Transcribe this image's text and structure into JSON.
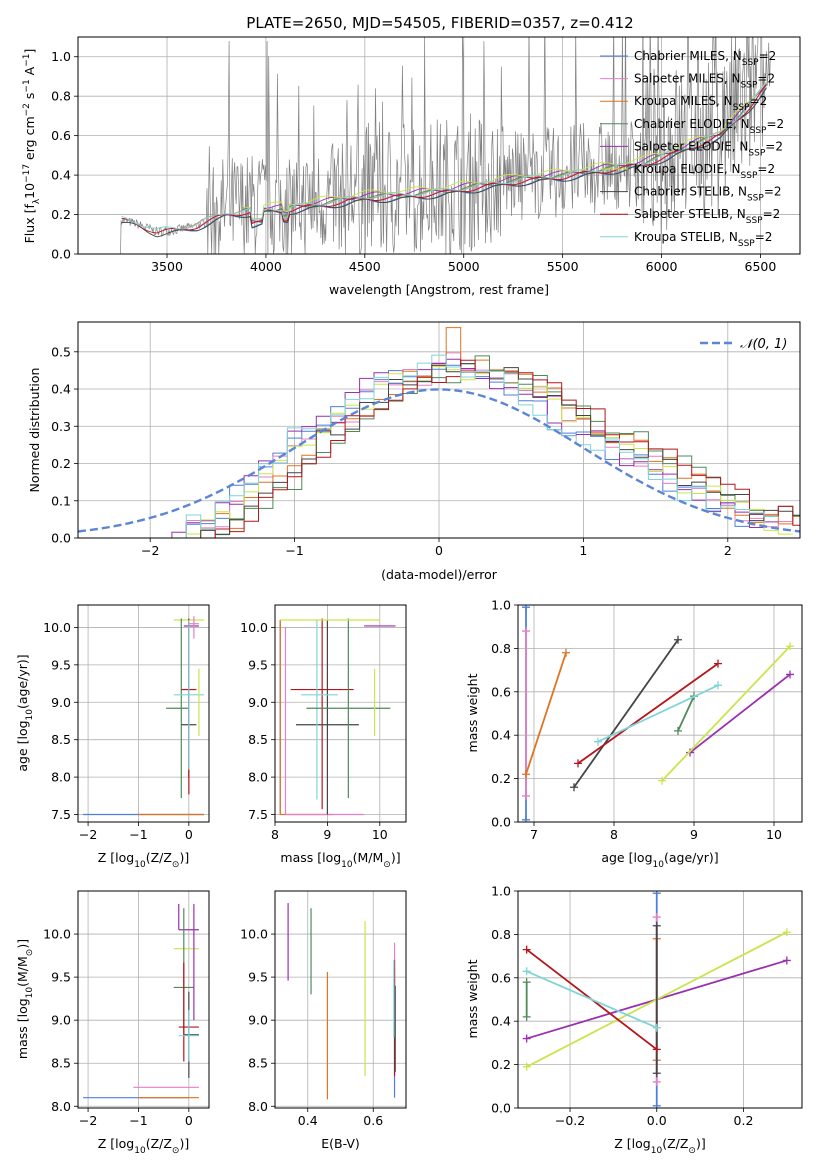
{
  "title": "PLATE=2650, MJD=54505, FIBERID=0357, z=0.412",
  "models": [
    {
      "key": "chabrier_miles",
      "label": "Chabrier MILES, N",
      "sub": "SSP",
      "suffix": "=2",
      "color": "#4f7fdc"
    },
    {
      "key": "salpeter_miles",
      "label": "Salpeter MILES, N",
      "sub": "SSP",
      "suffix": "=2",
      "color": "#e67fc5"
    },
    {
      "key": "kroupa_miles",
      "label": "Kroupa MILES, N",
      "sub": "SSP",
      "suffix": "=2",
      "color": "#e0731f"
    },
    {
      "key": "chabrier_elodie",
      "label": "Chabrier ELODIE, N",
      "sub": "SSP",
      "suffix": "=2",
      "color": "#4f8a5a"
    },
    {
      "key": "salpeter_elodie",
      "label": "Salpeter ELODIE, N",
      "sub": "SSP",
      "suffix": "=2",
      "color": "#9a2fb0"
    },
    {
      "key": "kroupa_elodie",
      "label": "Kroupa ELODIE, N",
      "sub": "SSP",
      "suffix": "=2",
      "color": "#c8e64a"
    },
    {
      "key": "chabrier_stelib",
      "label": "Chabrier STELIB, N",
      "sub": "SSP",
      "suffix": "=2",
      "color": "#444444"
    },
    {
      "key": "salpeter_stelib",
      "label": "Salpeter STELIB, N",
      "sub": "SSP",
      "suffix": "=2",
      "color": "#b5161c"
    },
    {
      "key": "kroupa_stelib",
      "label": "Kroupa STELIB, N",
      "sub": "SSP",
      "suffix": "=2",
      "color": "#7fd4d8"
    }
  ],
  "chart_data": [
    {
      "id": "spectrum",
      "type": "line",
      "title": "PLATE=2650, MJD=54505, FIBERID=0357, z=0.412",
      "xlabel": "wavelength [Angstrom, rest frame]",
      "ylabel_main": "Flux [f",
      "ylabel_sub": "λ",
      "ylabel_mid": "10",
      "ylabel_sup1": "−17",
      "ylabel_mid2": " erg cm",
      "ylabel_sup2": "−2",
      "ylabel_mid3": " s",
      "ylabel_sup3": "−1",
      "ylabel_mid4": " A",
      "ylabel_sup4": "−1",
      "ylabel_end": "]",
      "xlim": [
        3050,
        6700
      ],
      "ylim": [
        0,
        1.1
      ],
      "xticks": [
        3500,
        4000,
        4500,
        5000,
        5500,
        6000,
        6500
      ],
      "yticks": [
        0.0,
        0.2,
        0.4,
        0.6,
        0.8,
        1.0
      ],
      "data_color": "#808080",
      "data_range": [
        3200,
        6550
      ],
      "model_continuum": {
        "x": [
          3270,
          3350,
          3450,
          3550,
          3650,
          3800,
          3900,
          4000,
          4100,
          4300,
          4500,
          4700,
          4900,
          5100,
          5300,
          5500,
          5700,
          5900,
          6100,
          6300,
          6450,
          6530
        ],
        "y": [
          0.17,
          0.15,
          0.11,
          0.12,
          0.14,
          0.2,
          0.21,
          0.22,
          0.22,
          0.25,
          0.28,
          0.29,
          0.31,
          0.34,
          0.37,
          0.39,
          0.42,
          0.45,
          0.52,
          0.6,
          0.75,
          0.85
        ]
      }
    },
    {
      "id": "residuals",
      "type": "step-histogram",
      "xlabel": "(data-model)/error",
      "ylabel": "Normed distribution",
      "legend": "𝒩(0, 1)",
      "xlim": [
        -2.5,
        2.5
      ],
      "ylim": [
        0,
        0.58
      ],
      "xticks": [
        -2,
        -1,
        0,
        1,
        2
      ],
      "yticks": [
        0.0,
        0.1,
        0.2,
        0.3,
        0.4,
        0.5
      ],
      "bin_width": 0.1,
      "bin_start": -2.5,
      "envelope": [
        0.0,
        0.0,
        0.0,
        0.0,
        0.0,
        0.0,
        0.0,
        0.0,
        0.02,
        0.04,
        0.05,
        0.08,
        0.12,
        0.15,
        0.19,
        0.23,
        0.27,
        0.3,
        0.32,
        0.34,
        0.37,
        0.4,
        0.42,
        0.43,
        0.44,
        0.46,
        0.47,
        0.45,
        0.44,
        0.43,
        0.42,
        0.4,
        0.38,
        0.35,
        0.32,
        0.3,
        0.28,
        0.26,
        0.24,
        0.22,
        0.2,
        0.17,
        0.15,
        0.13,
        0.11,
        0.09,
        0.07,
        0.06,
        0.05,
        0.04
      ]
    },
    {
      "id": "age_vs_Z",
      "type": "errorbar",
      "xlabel_main": "Z [log",
      "xlabel_sub": "10",
      "xlabel_end": "(Z/Z",
      "xlabel_sun": "⊙",
      "xlabel_close": ")]",
      "ylabel_main": "age  [log",
      "ylabel_sub": "10",
      "ylabel_end": "(age/yr)]",
      "xlim": [
        -2.2,
        0.4
      ],
      "ylim": [
        7.4,
        10.3
      ],
      "xticks": [
        -2,
        -1,
        0
      ],
      "yticks": [
        7.5,
        8.0,
        8.5,
        9.0,
        9.5,
        10.0
      ],
      "points": [
        {
          "m": 0,
          "x": 0.0,
          "y": 7.5,
          "xerr": [
            2.1,
            0.3
          ],
          "yerr": [
            0.0,
            0.0
          ]
        },
        {
          "m": 2,
          "x": 0.0,
          "y": 7.5,
          "xerr": [
            1.0,
            0.3
          ],
          "yerr": [
            0.0,
            0.0
          ]
        },
        {
          "m": 5,
          "x": 0.0,
          "y": 10.1,
          "xerr": [
            0.3,
            0.3
          ],
          "yerr": [
            0.0,
            0.0
          ]
        },
        {
          "m": 4,
          "x": 0.2,
          "y": 10.02,
          "xerr": [
            0.3,
            0.0
          ],
          "yerr": [
            0.0,
            0.0
          ]
        },
        {
          "m": 3,
          "x": -0.15,
          "y": 8.92,
          "xerr": [
            0.3,
            0.15
          ],
          "yerr": [
            1.2,
            1.2
          ]
        },
        {
          "m": 6,
          "x": 0.0,
          "y": 8.7,
          "xerr": [
            0.15,
            0.15
          ],
          "yerr": [
            0.7,
            1.4
          ]
        },
        {
          "m": 7,
          "x": 0.0,
          "y": 9.17,
          "xerr": [
            0.15,
            0.15
          ],
          "yerr": [
            1.4,
            0.95
          ]
        },
        {
          "m": 8,
          "x": 0.0,
          "y": 9.1,
          "xerr": [
            0.3,
            0.3
          ],
          "yerr": [
            1.0,
            1.0
          ]
        },
        {
          "m": 1,
          "x": 0.1,
          "y": 10.05,
          "xerr": [
            0.1,
            0.1
          ],
          "yerr": [
            0.2,
            0.1
          ]
        },
        {
          "m": 5,
          "x": 0.2,
          "y": 9.0,
          "xerr": [
            0.0,
            0.0
          ],
          "yerr": [
            0.45,
            0.45
          ]
        }
      ]
    },
    {
      "id": "age_vs_mass",
      "type": "errorbar",
      "xlabel_main": "mass [log",
      "xlabel_sub": "10",
      "xlabel_end": "(M/M",
      "xlabel_sun": "⊙",
      "xlabel_close": ")]",
      "xlim": [
        8.0,
        10.5
      ],
      "ylim": [
        7.4,
        10.3
      ],
      "xticks": [
        8,
        9,
        10
      ],
      "yticks": [
        7.5,
        8.0,
        8.5,
        9.0,
        9.5,
        10.0
      ],
      "points": [
        {
          "m": 0,
          "x": 8.1,
          "y": 7.5,
          "xerr": [
            0.0,
            0.0
          ],
          "yerr": [
            0.0,
            2.6
          ]
        },
        {
          "m": 2,
          "x": 8.1,
          "y": 7.5,
          "xerr": [
            0.0,
            1.0
          ],
          "yerr": [
            0.0,
            2.6
          ]
        },
        {
          "m": 1,
          "x": 8.2,
          "y": 7.5,
          "xerr": [
            0.0,
            1.5
          ],
          "yerr": [
            0.0,
            2.5
          ]
        },
        {
          "m": 7,
          "x": 8.9,
          "y": 9.17,
          "xerr": [
            0.6,
            0.6
          ],
          "yerr": [
            1.6,
            0.95
          ]
        },
        {
          "m": 6,
          "x": 9.0,
          "y": 8.7,
          "xerr": [
            0.6,
            0.6
          ],
          "yerr": [
            1.2,
            1.4
          ]
        },
        {
          "m": 8,
          "x": 8.8,
          "y": 9.1,
          "xerr": [
            0.3,
            0.4
          ],
          "yerr": [
            1.4,
            1.0
          ]
        },
        {
          "m": 3,
          "x": 9.4,
          "y": 8.92,
          "xerr": [
            0.8,
            0.8
          ],
          "yerr": [
            1.2,
            1.2
          ]
        },
        {
          "m": 5,
          "x": 9.0,
          "y": 10.1,
          "xerr": [
            0.9,
            1.0
          ],
          "yerr": [
            0.0,
            0.0
          ]
        },
        {
          "m": 4,
          "x": 10.0,
          "y": 10.02,
          "xerr": [
            0.3,
            0.3
          ],
          "yerr": [
            0.0,
            0.0
          ]
        },
        {
          "m": 5,
          "x": 9.9,
          "y": 9.0,
          "xerr": [
            0.0,
            0.0
          ],
          "yerr": [
            0.45,
            0.45
          ]
        }
      ]
    },
    {
      "id": "weight_vs_age",
      "type": "line",
      "xlabel_main": "age  [log",
      "xlabel_sub": "10",
      "xlabel_end": "(age/yr)]",
      "ylabel": "mass weight",
      "xlim": [
        6.8,
        10.35
      ],
      "ylim": [
        0.0,
        1.0
      ],
      "xticks": [
        7,
        8,
        9,
        10
      ],
      "yticks": [
        0.0,
        0.2,
        0.4,
        0.6,
        0.8,
        1.0
      ],
      "series": [
        {
          "m": 0,
          "x": [
            6.9,
            6.9
          ],
          "y": [
            0.01,
            0.99
          ]
        },
        {
          "m": 1,
          "x": [
            6.9,
            6.9
          ],
          "y": [
            0.12,
            0.88
          ]
        },
        {
          "m": 2,
          "x": [
            6.9,
            7.4
          ],
          "y": [
            0.22,
            0.78
          ]
        },
        {
          "m": 3,
          "x": [
            8.8,
            9.0
          ],
          "y": [
            0.42,
            0.58
          ]
        },
        {
          "m": 4,
          "x": [
            8.95,
            10.2
          ],
          "y": [
            0.32,
            0.68
          ]
        },
        {
          "m": 5,
          "x": [
            8.6,
            10.2
          ],
          "y": [
            0.19,
            0.81
          ]
        },
        {
          "m": 6,
          "x": [
            7.5,
            8.8
          ],
          "y": [
            0.16,
            0.84
          ]
        },
        {
          "m": 7,
          "x": [
            7.55,
            9.3
          ],
          "y": [
            0.27,
            0.73
          ]
        },
        {
          "m": 8,
          "x": [
            7.8,
            9.3
          ],
          "y": [
            0.37,
            0.63
          ]
        }
      ]
    },
    {
      "id": "mass_vs_Z",
      "type": "errorbar",
      "xlabel_main": "Z [log",
      "xlabel_sub": "10",
      "xlabel_end": "(Z/Z",
      "xlabel_sun": "⊙",
      "xlabel_close": ")]",
      "ylabel_main": "mass [log",
      "ylabel_sub": "10",
      "ylabel_end": "(M/M",
      "ylabel_sun": "⊙",
      "ylabel_close": ")]",
      "xlim": [
        -2.2,
        0.4
      ],
      "ylim": [
        7.98,
        10.5
      ],
      "xticks": [
        -2,
        -1,
        0
      ],
      "yticks": [
        8.0,
        8.5,
        9.0,
        9.5,
        10.0
      ],
      "points": [
        {
          "m": 0,
          "x": 0.0,
          "y": 8.1,
          "xerr": [
            2.1,
            0.0
          ],
          "yerr": [
            0.0,
            0.0
          ]
        },
        {
          "m": 1,
          "x": 0.0,
          "y": 8.22,
          "xerr": [
            1.1,
            0.2
          ],
          "yerr": [
            0.0,
            0.0
          ]
        },
        {
          "m": 2,
          "x": 0.0,
          "y": 8.1,
          "xerr": [
            1.0,
            0.2
          ],
          "yerr": [
            0.0,
            0.0
          ]
        },
        {
          "m": 5,
          "x": 0.0,
          "y": 9.83,
          "xerr": [
            0.3,
            0.2
          ],
          "yerr": [
            0.0,
            0.0
          ]
        },
        {
          "m": 4,
          "x": -0.2,
          "y": 10.05,
          "xerr": [
            0.0,
            0.4
          ],
          "yerr": [
            0.0,
            0.3
          ]
        },
        {
          "m": 3,
          "x": -0.1,
          "y": 9.38,
          "xerr": [
            0.2,
            0.2
          ],
          "yerr": [
            0.55,
            0.92
          ]
        },
        {
          "m": 6,
          "x": 0.0,
          "y": 8.83,
          "xerr": [
            0.1,
            0.2
          ],
          "yerr": [
            0.5,
            0.5
          ]
        },
        {
          "m": 7,
          "x": -0.1,
          "y": 8.92,
          "xerr": [
            0.1,
            0.3
          ],
          "yerr": [
            0.4,
            0.75
          ]
        },
        {
          "m": 8,
          "x": 0.0,
          "y": 8.82,
          "xerr": [
            0.2,
            0.2
          ],
          "yerr": [
            0.3,
            0.3
          ]
        },
        {
          "m": 4,
          "x": 0.1,
          "y": 9.5,
          "xerr": [
            0.0,
            0.0
          ],
          "yerr": [
            0.5,
            0.85
          ]
        }
      ]
    },
    {
      "id": "mass_vs_ebv",
      "type": "errorbar",
      "xlabel": "E(B-V)",
      "xlim": [
        0.3,
        0.7
      ],
      "ylim": [
        7.98,
        10.5
      ],
      "xticks": [
        0.4,
        0.6
      ],
      "yticks": [
        8.0,
        8.5,
        9.0,
        9.5,
        10.0
      ],
      "points": [
        {
          "m": 4,
          "x": 0.34,
          "y": 9.91,
          "xerr": [
            0.0,
            0.0
          ],
          "yerr": [
            0.45,
            0.45
          ]
        },
        {
          "m": 3,
          "x": 0.41,
          "y": 9.8,
          "xerr": [
            0.0,
            0.0
          ],
          "yerr": [
            0.5,
            0.5
          ]
        },
        {
          "m": 2,
          "x": 0.46,
          "y": 8.78,
          "xerr": [
            0.0,
            0.0
          ],
          "yerr": [
            0.7,
            0.78
          ]
        },
        {
          "m": 5,
          "x": 0.575,
          "y": 9.2,
          "xerr": [
            0.0,
            0.0
          ],
          "yerr": [
            0.85,
            0.95
          ]
        },
        {
          "m": 0,
          "x": 0.665,
          "y": 9.0,
          "xerr": [
            0.0,
            0.0
          ],
          "yerr": [
            0.9,
            0.6
          ]
        },
        {
          "m": 1,
          "x": 0.665,
          "y": 9.3,
          "xerr": [
            0.0,
            0.0
          ],
          "yerr": [
            0.5,
            0.6
          ]
        },
        {
          "m": 7,
          "x": 0.665,
          "y": 9.0,
          "xerr": [
            0.0,
            0.0
          ],
          "yerr": [
            0.65,
            0.7
          ]
        },
        {
          "m": 8,
          "x": 0.663,
          "y": 9.4,
          "xerr": [
            0.0,
            0.0
          ],
          "yerr": [
            0.6,
            0.3
          ]
        },
        {
          "m": 6,
          "x": 0.667,
          "y": 8.9,
          "xerr": [
            0.0,
            0.0
          ],
          "yerr": [
            0.5,
            0.5
          ]
        }
      ]
    },
    {
      "id": "weight_vs_Z",
      "type": "line",
      "xlabel_main": "Z [log",
      "xlabel_sub": "10",
      "xlabel_end": "(Z/Z",
      "xlabel_sun": "⊙",
      "xlabel_close": ")]",
      "ylabel": "mass weight",
      "xlim": [
        -0.32,
        0.335
      ],
      "ylim": [
        0.0,
        1.0
      ],
      "xticks": [
        -0.2,
        0.0,
        0.2
      ],
      "yticks": [
        0.0,
        0.2,
        0.4,
        0.6,
        0.8,
        1.0
      ],
      "series": [
        {
          "m": 0,
          "x": [
            0.0,
            0.0
          ],
          "y": [
            0.01,
            0.99
          ]
        },
        {
          "m": 1,
          "x": [
            0.0,
            0.0
          ],
          "y": [
            0.12,
            0.88
          ]
        },
        {
          "m": 2,
          "x": [
            0.0,
            0.0
          ],
          "y": [
            0.22,
            0.78
          ]
        },
        {
          "m": 3,
          "x": [
            -0.3,
            -0.3
          ],
          "y": [
            0.42,
            0.58
          ]
        },
        {
          "m": 4,
          "x": [
            -0.3,
            0.3
          ],
          "y": [
            0.32,
            0.68
          ]
        },
        {
          "m": 5,
          "x": [
            -0.3,
            0.3
          ],
          "y": [
            0.19,
            0.81
          ]
        },
        {
          "m": 6,
          "x": [
            0.0,
            0.0
          ],
          "y": [
            0.16,
            0.84
          ]
        },
        {
          "m": 7,
          "x": [
            -0.3,
            0.0
          ],
          "y": [
            0.73,
            0.27
          ]
        },
        {
          "m": 8,
          "x": [
            -0.3,
            0.0
          ],
          "y": [
            0.63,
            0.37
          ]
        }
      ]
    }
  ]
}
